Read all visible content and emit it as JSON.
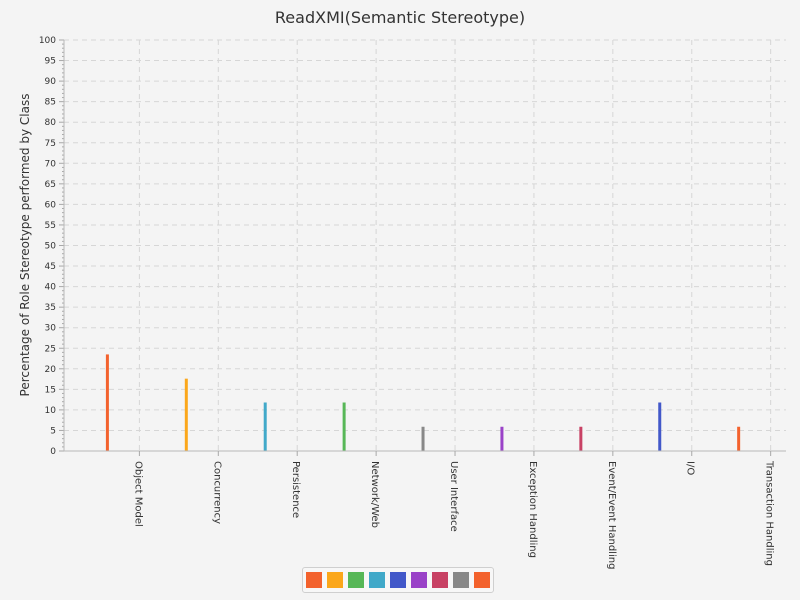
{
  "chart_data": {
    "type": "bar",
    "title": "ReadXMI(Semantic Stereotype)",
    "ylabel": "Percentage of Role Stereotype performed by Class",
    "xlabel": "",
    "ylim": [
      0,
      100
    ],
    "ytick_step": 5,
    "grid": true,
    "legend_position": "bottom-center",
    "categories": [
      "Object Model",
      "Concurrency",
      "Persistence",
      "Network/Web",
      "User Interface",
      "Exception Handling",
      "Event/Event Handling",
      "I/O",
      "Transaction Handling"
    ],
    "values": [
      23.5,
      17.6,
      11.8,
      11.8,
      5.9,
      5.9,
      5.9,
      11.8,
      5.9
    ],
    "colors": [
      "#f3622d",
      "#fba71b",
      "#57b757",
      "#41a9c9",
      "#4258c9",
      "#9a42c8",
      "#c84164",
      "#888888",
      "#f3622d"
    ],
    "bar_colors": [
      "#f3622d",
      "#fba71b",
      "#41a9c9",
      "#57b757",
      "#888888",
      "#9a42c8",
      "#c84164",
      "#4258c9",
      "#f3622d"
    ]
  }
}
